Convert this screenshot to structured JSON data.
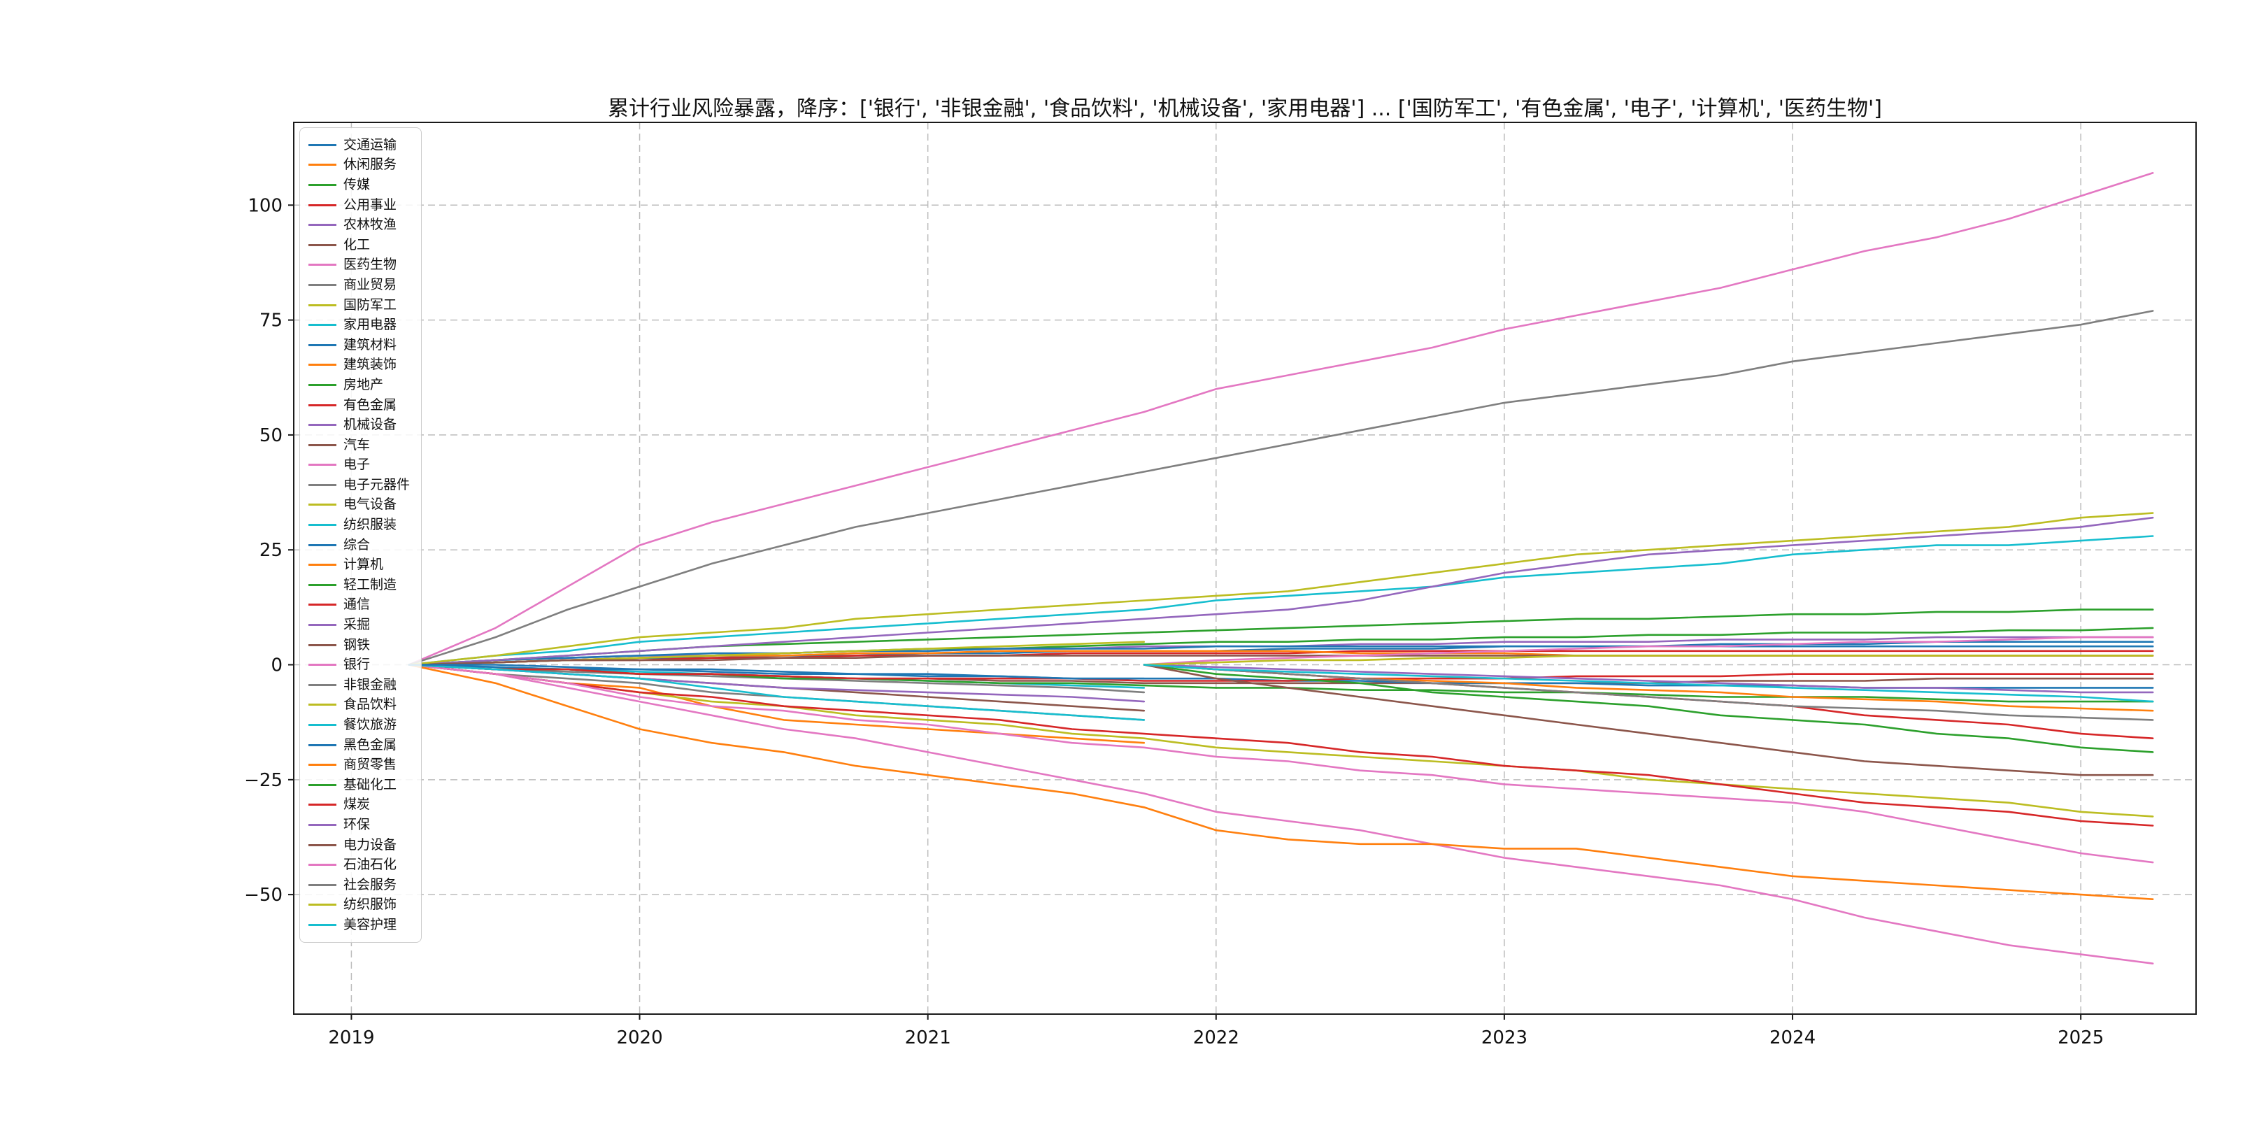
{
  "figure": {
    "background": "#ffffff"
  },
  "chart_data": {
    "type": "line",
    "title": "累计行业风险暴露，降序：['银行', '非银金融', '食品饮料', '机械设备', '家用电器'] ... ['国防军工', '有色金属', '电子', '计算机', '医药生物']",
    "xlabel": "",
    "ylabel": "",
    "xlim": [
      2018.8,
      2025.4
    ],
    "ylim": [
      -76,
      118
    ],
    "xticks": [
      2019,
      2020,
      2021,
      2022,
      2023,
      2024,
      2025
    ],
    "yticks": [
      -50,
      -25,
      0,
      25,
      50,
      75,
      100
    ],
    "grid": true,
    "grid_style": "dashed",
    "legend_position": "upper-left",
    "x_axes": {
      "full": [
        2019.2,
        2019.5,
        2019.75,
        2020,
        2020.25,
        2020.5,
        2020.75,
        2021,
        2021.25,
        2021.5,
        2021.75,
        2022,
        2022.25,
        2022.5,
        2022.75,
        2023,
        2023.25,
        2023.5,
        2023.75,
        2024,
        2024.25,
        2024.5,
        2024.75,
        2025,
        2025.25
      ],
      "old": [
        2019.2,
        2019.5,
        2019.75,
        2020,
        2020.25,
        2020.5,
        2020.75,
        2021,
        2021.25,
        2021.5,
        2021.75
      ],
      "new": [
        2021.75,
        2022,
        2022.25,
        2022.5,
        2022.75,
        2023,
        2023.25,
        2023.5,
        2023.75,
        2024,
        2024.25,
        2024.5,
        2024.75,
        2025,
        2025.25
      ]
    },
    "series": [
      {
        "name": "交通运输",
        "color": "#1f77b4",
        "x_ref": "full",
        "y": [
          0,
          0.5,
          1,
          1.5,
          1.5,
          2,
          2,
          2.5,
          2.5,
          3,
          3,
          3,
          3.5,
          3.5,
          3.5,
          4,
          4,
          4,
          4.5,
          4.5,
          4.5,
          5,
          5,
          5,
          5
        ]
      },
      {
        "name": "休闲服务",
        "color": "#ff7f0e",
        "x_ref": "old",
        "y": [
          0,
          -2,
          -4,
          -5,
          -9,
          -12,
          -13,
          -14,
          -15,
          -16,
          -17
        ]
      },
      {
        "name": "传媒",
        "color": "#2ca02c",
        "x_ref": "full",
        "y": [
          0,
          0.5,
          1,
          1.5,
          2,
          2.5,
          3,
          3.5,
          3.5,
          4,
          4.5,
          5,
          5,
          5.5,
          5.5,
          6,
          6,
          6.5,
          6.5,
          7,
          7,
          7,
          7.5,
          7.5,
          8
        ]
      },
      {
        "name": "公用事业",
        "color": "#d62728",
        "x_ref": "full",
        "y": [
          0,
          0.5,
          1,
          1,
          1.5,
          1.5,
          2,
          2,
          2,
          2.5,
          2.5,
          2.5,
          2.5,
          3,
          3,
          3,
          3,
          3,
          3,
          3,
          3,
          3,
          3,
          3,
          3
        ]
      },
      {
        "name": "农林牧渔",
        "color": "#9467bd",
        "x_ref": "full",
        "y": [
          0,
          1,
          1.5,
          2,
          2,
          2.5,
          3,
          3,
          3.5,
          3.5,
          4,
          4,
          4,
          4.5,
          4.5,
          5,
          5,
          5,
          5.5,
          5.5,
          5.5,
          6,
          6,
          6,
          6
        ]
      },
      {
        "name": "化工",
        "color": "#8c564b",
        "x_ref": "old",
        "y": [
          0,
          -1,
          -2,
          -3,
          -4,
          -5,
          -6,
          -7,
          -8,
          -9,
          -10
        ]
      },
      {
        "name": "医药生物",
        "color": "#e377c2",
        "x_ref": "full",
        "y": [
          0,
          -2,
          -5,
          -8,
          -11,
          -14,
          -16,
          -19,
          -22,
          -25,
          -28,
          -32,
          -34,
          -36,
          -39,
          -42,
          -44,
          -46,
          -48,
          -51,
          -55,
          -58,
          -61,
          -63,
          -65
        ]
      },
      {
        "name": "商业贸易",
        "color": "#7f7f7f",
        "x_ref": "old",
        "y": [
          0,
          -2,
          -3,
          -4,
          -6,
          -7,
          -8,
          -9,
          -10,
          -11,
          -12
        ]
      },
      {
        "name": "国防军工",
        "color": "#bcbd22",
        "x_ref": "full",
        "y": [
          0,
          -2,
          -4,
          -6,
          -8,
          -9,
          -11,
          -12,
          -13,
          -15,
          -16,
          -18,
          -19,
          -20,
          -21,
          -22,
          -23,
          -25,
          -26,
          -27,
          -28,
          -29,
          -30,
          -32,
          -33
        ]
      },
      {
        "name": "家用电器",
        "color": "#17becf",
        "x_ref": "full",
        "y": [
          0,
          2,
          3,
          5,
          6,
          7,
          8,
          9,
          10,
          11,
          12,
          14,
          15,
          16,
          17,
          19,
          20,
          21,
          22,
          24,
          25,
          26,
          26,
          27,
          28
        ]
      },
      {
        "name": "建筑材料",
        "color": "#1f77b4",
        "x_ref": "full",
        "y": [
          0,
          1,
          1.5,
          2,
          2.5,
          2.5,
          3,
          3,
          3.5,
          3.5,
          3.5,
          4,
          4,
          4,
          4,
          4,
          4,
          4,
          4,
          4,
          4,
          4,
          4,
          4,
          4
        ]
      },
      {
        "name": "建筑装饰",
        "color": "#ff7f0e",
        "x_ref": "full",
        "y": [
          0,
          0.5,
          1,
          1.5,
          2,
          2,
          2.5,
          2.5,
          3,
          3,
          3,
          3,
          3,
          2.5,
          2.5,
          2.5,
          2,
          2,
          2,
          2,
          2,
          2,
          2,
          2,
          2
        ]
      },
      {
        "name": "房地产",
        "color": "#2ca02c",
        "x_ref": "full",
        "y": [
          0,
          1,
          2,
          3,
          4,
          4.5,
          5,
          5.5,
          6,
          6.5,
          7,
          7.5,
          8,
          8.5,
          9,
          9.5,
          10,
          10,
          10.5,
          11,
          11,
          11.5,
          11.5,
          12,
          12
        ]
      },
      {
        "name": "有色金属",
        "color": "#d62728",
        "x_ref": "full",
        "y": [
          0,
          -2,
          -4,
          -6,
          -7,
          -9,
          -10,
          -11,
          -12,
          -14,
          -15,
          -16,
          -17,
          -19,
          -20,
          -22,
          -23,
          -24,
          -26,
          -28,
          -30,
          -31,
          -32,
          -34,
          -35
        ]
      },
      {
        "name": "机械设备",
        "color": "#9467bd",
        "x_ref": "full",
        "y": [
          0,
          1,
          2,
          3,
          4,
          5,
          6,
          7,
          8,
          9,
          10,
          11,
          12,
          14,
          17,
          20,
          22,
          24,
          25,
          26,
          27,
          28,
          29,
          30,
          32
        ]
      },
      {
        "name": "汽车",
        "color": "#8c564b",
        "x_ref": "full",
        "y": [
          0,
          -1,
          -1,
          -2,
          -2,
          -2.5,
          -3,
          -3,
          -3.5,
          -3.5,
          -4,
          -4,
          -4,
          -4,
          -4,
          -4,
          -4,
          -4,
          -3.5,
          -3.5,
          -3.5,
          -3,
          -3,
          -3,
          -3
        ]
      },
      {
        "name": "电子",
        "color": "#e377c2",
        "x_ref": "full",
        "y": [
          0,
          -2,
          -4,
          -7,
          -9,
          -10,
          -12,
          -13,
          -15,
          -17,
          -18,
          -20,
          -21,
          -23,
          -24,
          -26,
          -27,
          -28,
          -29,
          -30,
          -32,
          -35,
          -38,
          -41,
          -43
        ]
      },
      {
        "name": "电子元器件",
        "color": "#7f7f7f",
        "x_ref": "old",
        "y": [
          0,
          -1,
          -1.5,
          -2,
          -2.5,
          -3,
          -3.5,
          -4,
          -4.5,
          -5,
          -6
        ]
      },
      {
        "name": "电气设备",
        "color": "#bcbd22",
        "x_ref": "old",
        "y": [
          0,
          0.5,
          1,
          1.5,
          2,
          2.5,
          3,
          3.5,
          4,
          4.5,
          5
        ]
      },
      {
        "name": "纺织服装",
        "color": "#17becf",
        "x_ref": "old",
        "y": [
          0,
          -0.5,
          -1,
          -1.5,
          -2,
          -2.5,
          -3,
          -3.5,
          -4,
          -4.5,
          -5
        ]
      },
      {
        "name": "综合",
        "color": "#1f77b4",
        "x_ref": "full",
        "y": [
          0,
          -0.5,
          -1,
          -1,
          -1.5,
          -2,
          -2,
          -2.5,
          -2.5,
          -3,
          -3,
          -3,
          -3.5,
          -3.5,
          -4,
          -4,
          -4,
          -4.5,
          -4.5,
          -4.5,
          -5,
          -5,
          -5,
          -5,
          -5
        ]
      },
      {
        "name": "计算机",
        "color": "#ff7f0e",
        "x_ref": "full",
        "y": [
          0,
          -4,
          -9,
          -14,
          -17,
          -19,
          -22,
          -24,
          -26,
          -28,
          -31,
          -36,
          -38,
          -39,
          -39,
          -40,
          -40,
          -42,
          -44,
          -46,
          -47,
          -48,
          -49,
          -50,
          -51
        ]
      },
      {
        "name": "轻工制造",
        "color": "#2ca02c",
        "x_ref": "full",
        "y": [
          0,
          -1,
          -1,
          -2,
          -2,
          -3,
          -3,
          -3.5,
          -4,
          -4,
          -4.5,
          -5,
          -5,
          -5.5,
          -5.5,
          -6,
          -6,
          -6.5,
          -7,
          -7,
          -7,
          -7.5,
          -8,
          -8,
          -8
        ]
      },
      {
        "name": "通信",
        "color": "#d62728",
        "x_ref": "full",
        "y": [
          0,
          -1,
          -1,
          -2,
          -2,
          -2.5,
          -3,
          -3,
          -3,
          -3,
          -3.5,
          -3.5,
          -3.5,
          -3,
          -3,
          -3,
          -2.5,
          -2.5,
          -2.5,
          -2,
          -2,
          -2,
          -2,
          -2,
          -2
        ]
      },
      {
        "name": "采掘",
        "color": "#9467bd",
        "x_ref": "old",
        "y": [
          0,
          -1,
          -2,
          -3,
          -4,
          -5,
          -5.5,
          -6,
          -6.5,
          -7,
          -8
        ]
      },
      {
        "name": "钢铁",
        "color": "#8c564b",
        "x_ref": "full",
        "y": [
          0,
          0.5,
          1,
          1,
          1,
          1.5,
          1.5,
          2,
          2,
          2,
          2,
          2,
          2,
          2,
          2,
          2,
          2,
          2,
          2,
          2,
          2,
          2,
          2,
          2,
          2
        ]
      },
      {
        "name": "银行",
        "color": "#e377c2",
        "x_ref": "full",
        "y": [
          0,
          8,
          17,
          26,
          31,
          35,
          39,
          43,
          47,
          51,
          55,
          60,
          63,
          66,
          69,
          73,
          76,
          79,
          82,
          86,
          90,
          93,
          97,
          102,
          107
        ]
      },
      {
        "name": "非银金融",
        "color": "#7f7f7f",
        "x_ref": "full",
        "y": [
          0,
          6,
          12,
          17,
          22,
          26,
          30,
          33,
          36,
          39,
          42,
          45,
          48,
          51,
          54,
          57,
          59,
          61,
          63,
          66,
          68,
          70,
          72,
          74,
          77
        ]
      },
      {
        "name": "食品饮料",
        "color": "#bcbd22",
        "x_ref": "full",
        "y": [
          0,
          2,
          4,
          6,
          7,
          8,
          10,
          11,
          12,
          13,
          14,
          15,
          16,
          18,
          20,
          22,
          24,
          25,
          26,
          27,
          28,
          29,
          30,
          32,
          33
        ]
      },
      {
        "name": "餐饮旅游",
        "color": "#17becf",
        "x_ref": "old",
        "y": [
          0,
          -1,
          -2,
          -3,
          -5,
          -7,
          -8,
          -9,
          -10,
          -11,
          -12
        ]
      },
      {
        "name": "黑色金属",
        "color": "#1f77b4",
        "x_ref": "old",
        "y": [
          0,
          0,
          -0.5,
          -1,
          -1,
          -1.5,
          -2,
          -2,
          -2.5,
          -3,
          -3
        ]
      },
      {
        "name": "商贸零售",
        "color": "#ff7f0e",
        "x_ref": "new",
        "y": [
          0,
          -1,
          -2,
          -3,
          -3.5,
          -4,
          -5,
          -5.5,
          -6,
          -7,
          -7.5,
          -8,
          -9,
          -9.5,
          -10
        ]
      },
      {
        "name": "基础化工",
        "color": "#2ca02c",
        "x_ref": "new",
        "y": [
          0,
          -2,
          -3,
          -4,
          -6,
          -7,
          -8,
          -9,
          -11,
          -12,
          -13,
          -15,
          -16,
          -18,
          -19
        ]
      },
      {
        "name": "煤炭",
        "color": "#d62728",
        "x_ref": "new",
        "y": [
          0,
          -1,
          -2,
          -3,
          -4,
          -5,
          -6,
          -7,
          -8,
          -9,
          -11,
          -12,
          -13,
          -15,
          -16
        ]
      },
      {
        "name": "环保",
        "color": "#9467bd",
        "x_ref": "new",
        "y": [
          0,
          -0.5,
          -1,
          -1.5,
          -2,
          -2.5,
          -3,
          -3.5,
          -4,
          -4.5,
          -5,
          -5,
          -5.5,
          -6,
          -6
        ]
      },
      {
        "name": "电力设备",
        "color": "#8c564b",
        "x_ref": "new",
        "y": [
          0,
          -3,
          -5,
          -7,
          -9,
          -11,
          -13,
          -15,
          -17,
          -19,
          -21,
          -22,
          -23,
          -24,
          -24
        ]
      },
      {
        "name": "石油石化",
        "color": "#e377c2",
        "x_ref": "new",
        "y": [
          0,
          1,
          1.5,
          2,
          2.5,
          3,
          3.5,
          4,
          4,
          4.5,
          5,
          5,
          5.5,
          6,
          6
        ]
      },
      {
        "name": "社会服务",
        "color": "#7f7f7f",
        "x_ref": "new",
        "y": [
          0,
          -1,
          -2,
          -3,
          -4,
          -5,
          -6,
          -7,
          -8,
          -9,
          -9.5,
          -10,
          -11,
          -11.5,
          -12
        ]
      },
      {
        "name": "纺织服饰",
        "color": "#bcbd22",
        "x_ref": "new",
        "y": [
          0,
          0.5,
          1,
          1,
          1.5,
          1.5,
          2,
          2,
          2,
          2,
          2,
          2,
          2,
          2,
          2
        ]
      },
      {
        "name": "美容护理",
        "color": "#17becf",
        "x_ref": "new",
        "y": [
          0,
          -1,
          -1.5,
          -2,
          -2.5,
          -3,
          -3.5,
          -4,
          -4.5,
          -5,
          -5.5,
          -6,
          -6.5,
          -7,
          -8
        ]
      }
    ]
  }
}
